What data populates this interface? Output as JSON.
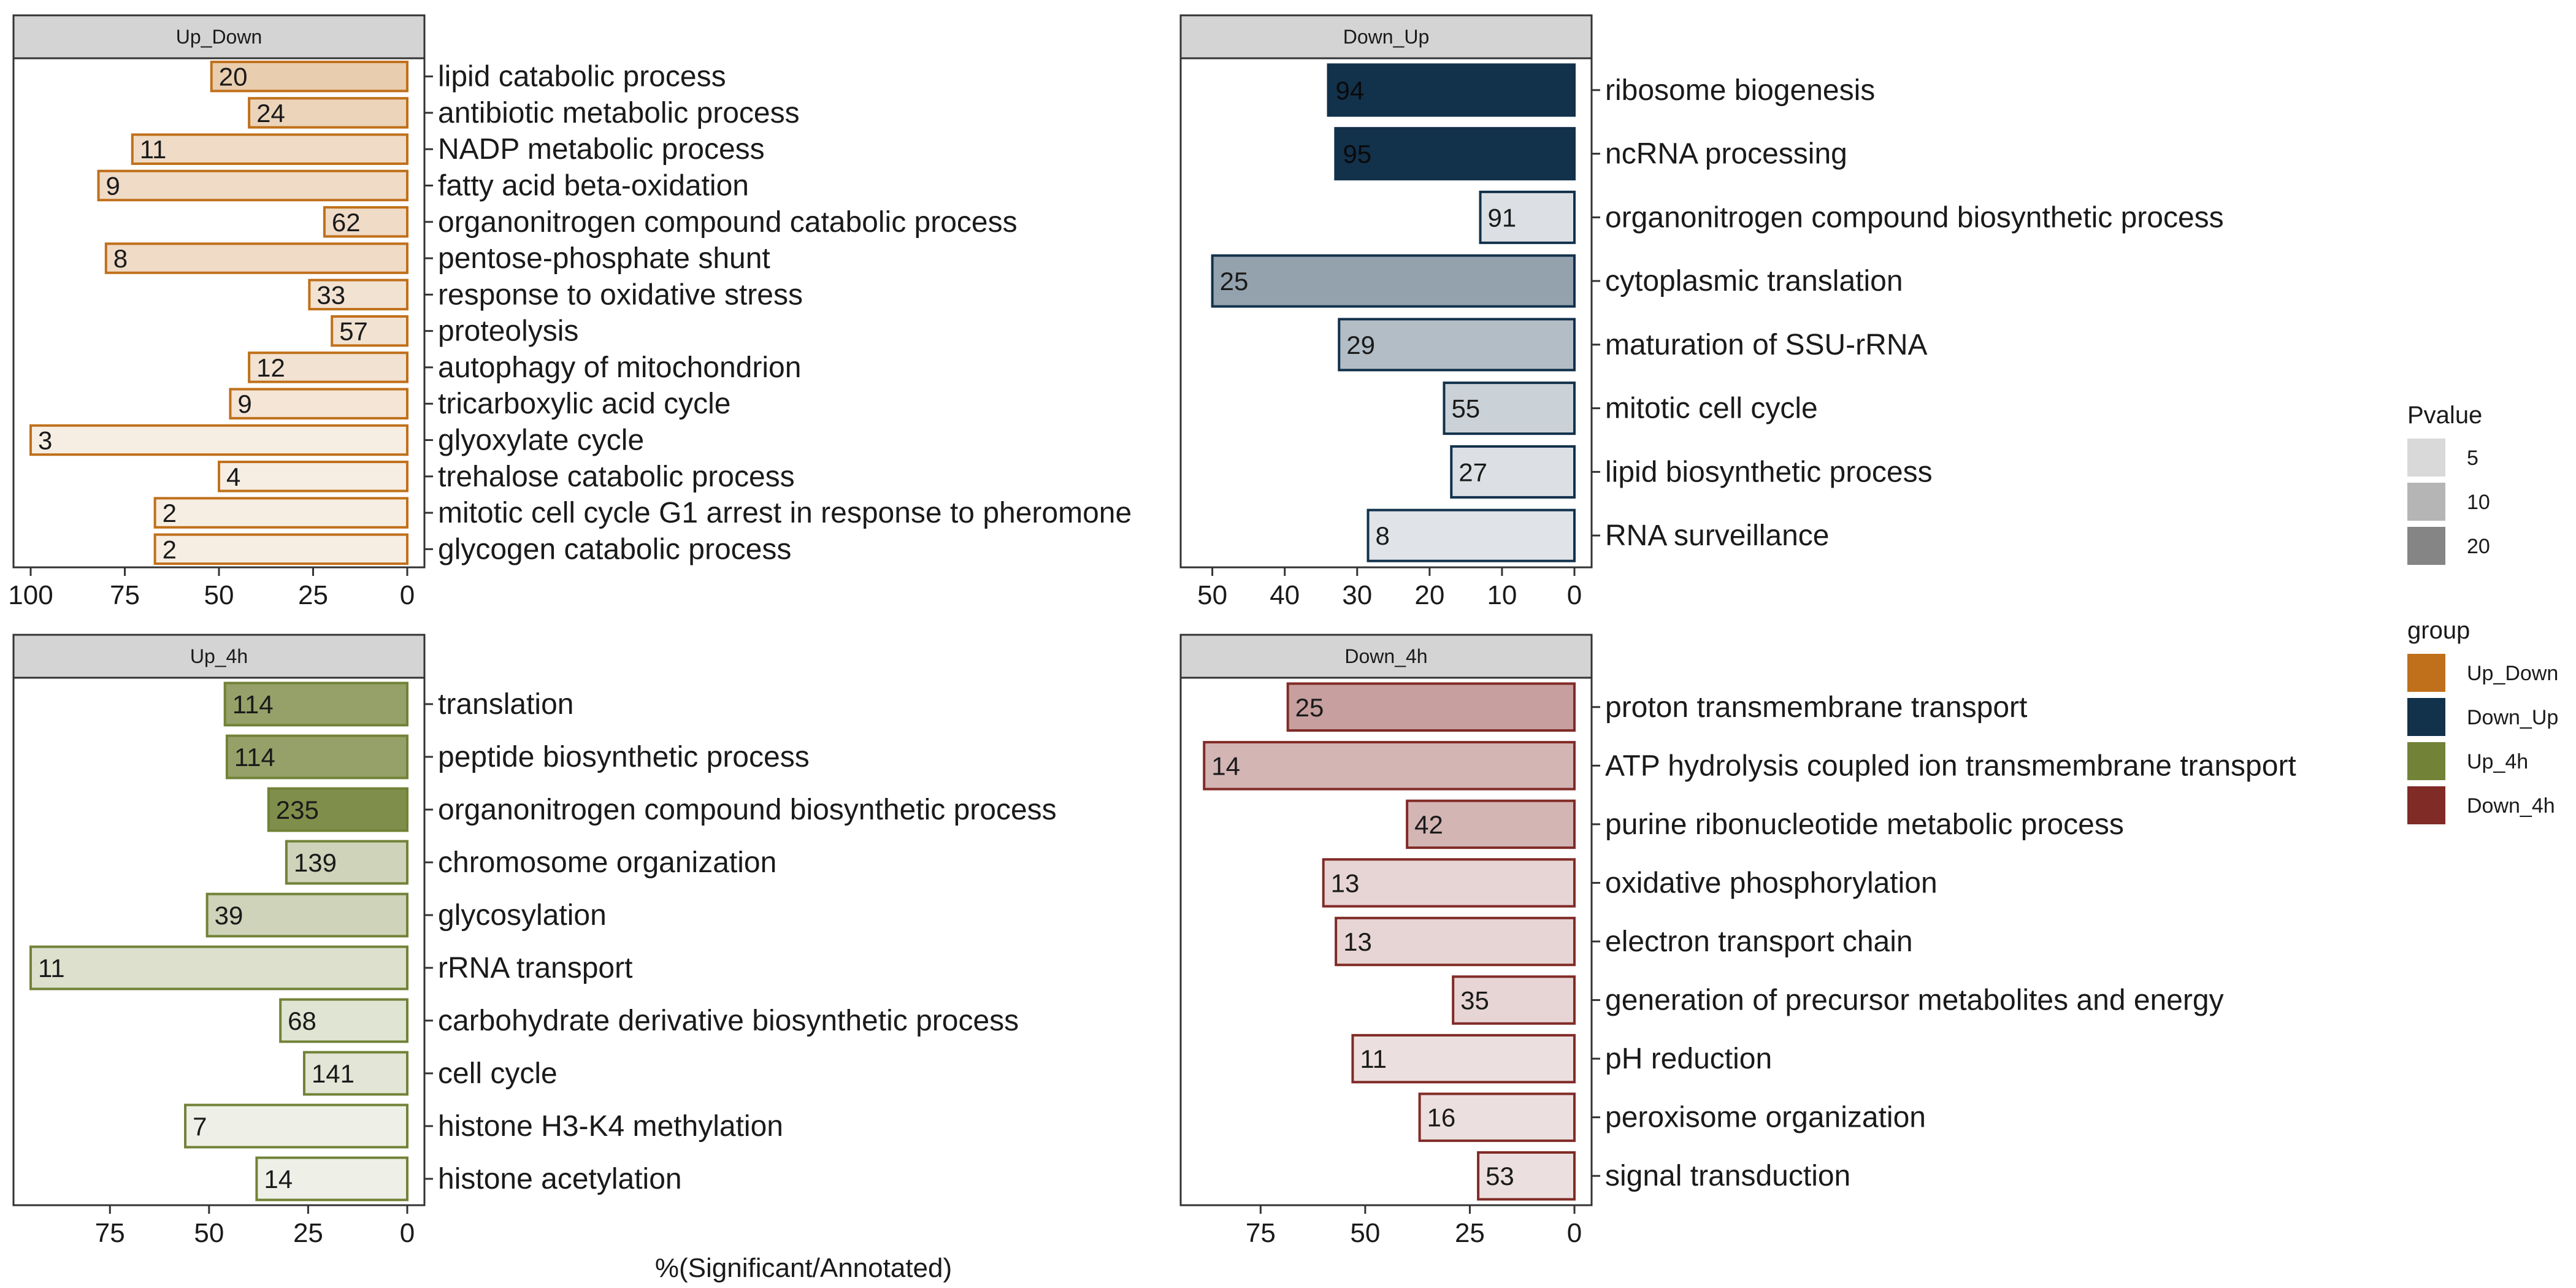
{
  "chart_data": {
    "type": "bar",
    "xlabel": "%(Significant/Annotated)",
    "legend_position": "right",
    "legends": [
      {
        "title": "Pvalue",
        "items": [
          {
            "label": "5",
            "color": "#d9d9d9"
          },
          {
            "label": "10",
            "color": "#b5b5b5"
          },
          {
            "label": "20",
            "color": "#858585"
          }
        ]
      },
      {
        "title": "group",
        "items": [
          {
            "label": "Up_Down",
            "color": "#c0701b"
          },
          {
            "label": "Down_Up",
            "color": "#12314b"
          },
          {
            "label": "Up_4h",
            "color": "#728237"
          },
          {
            "label": "Down_4h",
            "color": "#812b27"
          }
        ]
      }
    ],
    "facets": [
      {
        "title": "Up_Down",
        "color": "#c0701b",
        "xlim": [
          100,
          0
        ],
        "xticks": [
          100,
          75,
          50,
          25,
          0
        ],
        "categories": [
          "lipid catabolic process",
          "antibiotic metabolic process",
          "NADP metabolic process",
          "fatty acid beta-oxidation",
          "organonitrogen compound catabolic process",
          "pentose-phosphate shunt",
          "response to oxidative stress",
          "proteolysis",
          "autophagy of mitochondrion",
          "tricarboxylic acid cycle",
          "glyoxylate cycle",
          "trehalose catabolic process",
          "mitotic cell cycle G1 arrest in response to pheromone",
          "glycogen catabolic process"
        ],
        "values": [
          52,
          42,
          73,
          82,
          22,
          80,
          26,
          20,
          42,
          47,
          100,
          50,
          67,
          67
        ],
        "labels": [
          "20",
          "24",
          "11",
          "9",
          "62",
          "8",
          "33",
          "57",
          "12",
          "9",
          "3",
          "4",
          "2",
          "2"
        ],
        "fill_alpha": [
          0.35,
          0.3,
          0.25,
          0.25,
          0.25,
          0.25,
          0.2,
          0.2,
          0.2,
          0.18,
          0.12,
          0.12,
          0.12,
          0.12
        ]
      },
      {
        "title": "Down_Up",
        "color": "#12314b",
        "xlim": [
          52,
          0
        ],
        "xticks": [
          50,
          40,
          30,
          20,
          10,
          0
        ],
        "categories": [
          "ribosome biogenesis",
          "ncRNA processing",
          "organonitrogen compound biosynthetic process",
          "cytoplasmic translation",
          "maturation of SSU-rRNA",
          "mitotic cell cycle",
          "lipid biosynthetic process",
          "RNA surveillance"
        ],
        "values": [
          34,
          33,
          13,
          50,
          32.5,
          18,
          17,
          28.5
        ],
        "labels": [
          "94",
          "95",
          "91",
          "25",
          "29",
          "55",
          "27",
          "8"
        ],
        "fill_alpha": [
          1.0,
          1.0,
          0.15,
          0.45,
          0.32,
          0.22,
          0.15,
          0.13
        ]
      },
      {
        "title": "Up_4h",
        "color": "#728237",
        "xlim": [
          95,
          0
        ],
        "xticks": [
          75,
          50,
          25,
          0
        ],
        "categories": [
          "translation",
          "peptide biosynthetic process",
          "organonitrogen compound biosynthetic process",
          "chromosome organization",
          "glycosylation",
          "rRNA transport",
          "carbohydrate derivative biosynthetic process",
          "cell cycle",
          "histone H3-K4 methylation",
          "histone acetylation"
        ],
        "values": [
          46,
          45.5,
          35,
          30.5,
          50.5,
          95,
          32,
          26,
          56,
          38
        ],
        "labels": [
          "114",
          "114",
          "235",
          "139",
          "39",
          "11",
          "68",
          "141",
          "7",
          "14"
        ],
        "fill_alpha": [
          0.75,
          0.75,
          0.9,
          0.35,
          0.35,
          0.25,
          0.22,
          0.2,
          0.12,
          0.12
        ]
      },
      {
        "title": "Down_4h",
        "color": "#812b27",
        "xlim": [
          90,
          0
        ],
        "xticks": [
          75,
          50,
          25,
          0
        ],
        "categories": [
          "proton transmembrane transport",
          "ATP hydrolysis coupled ion transmembrane transport",
          "purine ribonucleotide metabolic process",
          "oxidative phosphorylation",
          "electron transport chain",
          "generation of precursor metabolites and energy",
          "pH reduction",
          "peroxisome organization",
          "signal transduction"
        ],
        "values": [
          68.5,
          88.5,
          40,
          60,
          57,
          29,
          53,
          37,
          23
        ],
        "labels": [
          "25",
          "14",
          "42",
          "13",
          "13",
          "35",
          "11",
          "16",
          "53"
        ],
        "fill_alpha": [
          0.45,
          0.35,
          0.35,
          0.2,
          0.2,
          0.2,
          0.15,
          0.15,
          0.15
        ]
      }
    ]
  }
}
